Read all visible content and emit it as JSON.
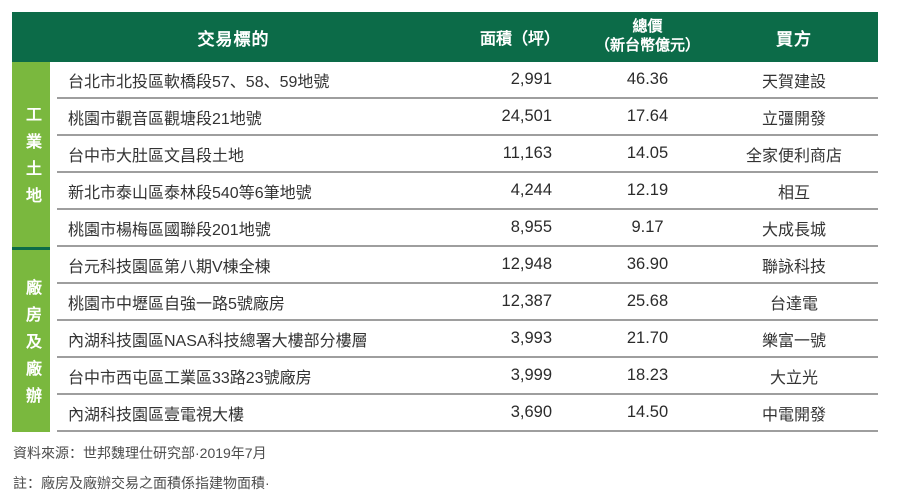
{
  "colors": {
    "header_green": "#0c6b48",
    "category_green": "#7ab83e",
    "row_divider_gray": "#9e9e9e",
    "body_text": "#333333",
    "footer_text": "#4d4d4d",
    "header_text": "#ffffff"
  },
  "table": {
    "headers": {
      "target": "交易標的",
      "area": "面積（坪）",
      "price_line1": "總價",
      "price_line2": "（新台幣億元）",
      "buyer": "買方"
    },
    "groups": [
      {
        "category": "工業土地",
        "rows": [
          {
            "target": "台北市北投區軟橋段57、58、59地號",
            "area": "2,991",
            "price": "46.36",
            "buyer": "天賀建設"
          },
          {
            "target": "桃園市觀音區觀塘段21地號",
            "area": "24,501",
            "price": "17.64",
            "buyer": "立彊開發"
          },
          {
            "target": "台中市大肚區文昌段土地",
            "area": "11,163",
            "price": "14.05",
            "buyer": "全家便利商店"
          },
          {
            "target": "新北市泰山區泰林段540等6筆地號",
            "area": "4,244",
            "price": "12.19",
            "buyer": "相互"
          },
          {
            "target": "桃園市楊梅區國聯段201地號",
            "area": "8,955",
            "price": "9.17",
            "buyer": "大成長城"
          }
        ]
      },
      {
        "category": "廠房及廠辦",
        "rows": [
          {
            "target": "台元科技園區第八期V棟全棟",
            "area": "12,948",
            "price": "36.90",
            "buyer": "聯詠科技"
          },
          {
            "target": "桃園市中壢區自強一路5號廠房",
            "area": "12,387",
            "price": "25.68",
            "buyer": "台達電"
          },
          {
            "target": "內湖科技園區NASA科技總署大樓部分樓層",
            "area": "3,993",
            "price": "21.70",
            "buyer": "樂富一號"
          },
          {
            "target": "台中市西屯區工業區33路23號廠房",
            "area": "3,999",
            "price": "18.23",
            "buyer": "大立光"
          },
          {
            "target": "內湖科技園區壹電視大樓",
            "area": "3,690",
            "price": "14.50",
            "buyer": "中電開發"
          }
        ]
      }
    ]
  },
  "footer": {
    "source": "資料來源：世邦魏理仕研究部·2019年7月",
    "note": "註：廠房及廠辦交易之面積係指建物面積·"
  }
}
